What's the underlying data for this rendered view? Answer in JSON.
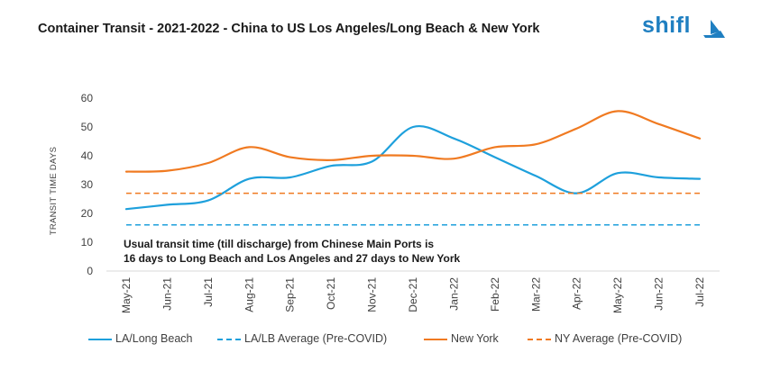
{
  "header": {
    "title": "Container Transit - 2021-2022  - China to US Los Angeles/Long Beach & New York",
    "logo_text": "shifl"
  },
  "chart_data": {
    "type": "line",
    "title": "Container Transit - 2021-2022  - China to US Los Angeles/Long Beach & New York",
    "xlabel": "",
    "ylabel": "TRANSIT TIME DAYS",
    "ylim": [
      0,
      60
    ],
    "yticks": [
      "0",
      "10",
      "20",
      "30",
      "40",
      "50",
      "60"
    ],
    "grid": false,
    "legend_position": "bottom",
    "categories": [
      "May-21",
      "Jun-21",
      "Jul-21",
      "Aug-21",
      "Sep-21",
      "Oct-21",
      "Nov-21",
      "Dec-21",
      "Jan-22",
      "Feb-22",
      "Mar-22",
      "Apr-22",
      "May-22",
      "Jun-22",
      "Jul-22"
    ],
    "series": [
      {
        "name": "LA/Long Beach",
        "color": "#1ea0dc",
        "dashed": false,
        "values": [
          21.5,
          23,
          24.5,
          32,
          32.5,
          36.5,
          38,
          50,
          46,
          39.5,
          33,
          27,
          34,
          32.5,
          32
        ]
      },
      {
        "name": "LA/LB Average (Pre-COVID)",
        "color": "#1ea0dc",
        "dashed": true,
        "values": [
          16,
          16,
          16,
          16,
          16,
          16,
          16,
          16,
          16,
          16,
          16,
          16,
          16,
          16,
          16
        ]
      },
      {
        "name": "New York",
        "color": "#f07a21",
        "dashed": false,
        "values": [
          34.5,
          34.8,
          37.5,
          43,
          39.5,
          38.5,
          40,
          40,
          39,
          43,
          44,
          49.5,
          55.5,
          51,
          46
        ]
      },
      {
        "name": "NY Average (Pre-COVID)",
        "color": "#f07a21",
        "dashed": true,
        "values": [
          27,
          27,
          27,
          27,
          27,
          27,
          27,
          27,
          27,
          27,
          27,
          27,
          27,
          27,
          27
        ]
      }
    ],
    "annotation": [
      "Usual transit time (till discharge) from Chinese Main Ports is",
      "16 days to Long Beach and Los Angeles and 27 days to New York"
    ]
  }
}
